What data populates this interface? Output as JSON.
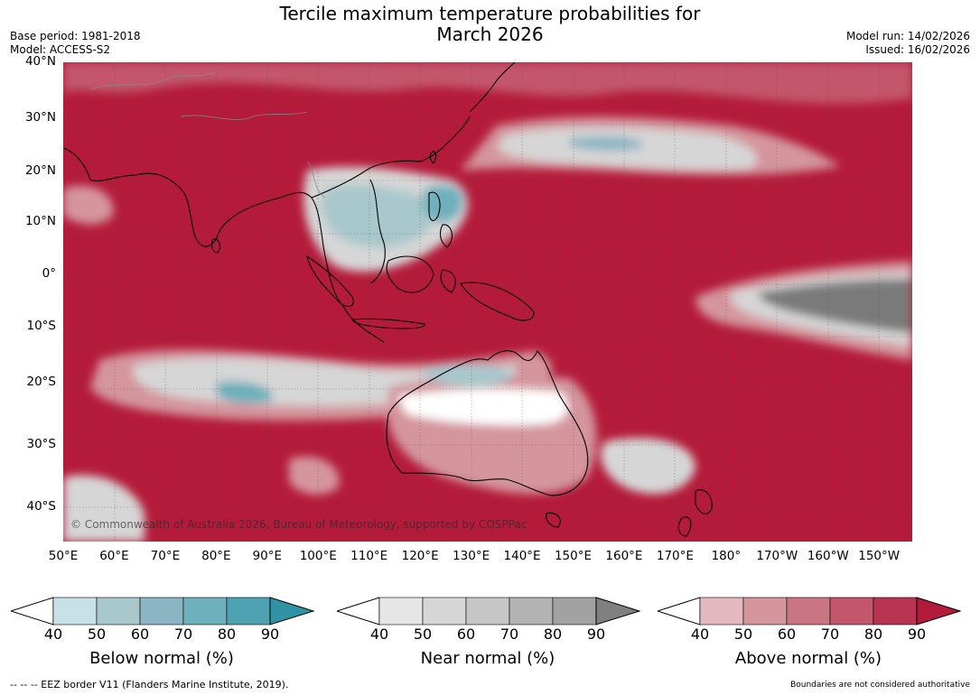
{
  "title_line1": "Tercile maximum temperature probabilities for",
  "title_line2": "March 2026",
  "base_period": "Base period: 1981-2018",
  "model": "Model: ACCESS-S2",
  "model_run": "Model run: 14/02/2026",
  "issued": "Issued: 16/02/2026",
  "copyright": "© Commonwealth of Australia 2026, Bureau of Meteorology, supported by COSPPac",
  "footer_left": "--  --  -- EEZ border V11 (Flanders Marine Institute, 2019).",
  "footer_right": "Boundaries are not considered authoritative",
  "lat_labels": [
    "40°N",
    "30°N",
    "20°N",
    "10°N",
    "0°",
    "10°S",
    "20°S",
    "30°S",
    "40°S"
  ],
  "lon_labels": [
    "50°E",
    "60°E",
    "70°E",
    "80°E",
    "90°E",
    "100°E",
    "110°E",
    "120°E",
    "130°E",
    "140°E",
    "150°E",
    "160°E",
    "170°E",
    "180°",
    "170°W",
    "160°W",
    "150°W"
  ],
  "colorbars": [
    {
      "title": "Below normal (%)",
      "ticks": [
        "40",
        "50",
        "60",
        "70",
        "80",
        "90"
      ],
      "colors": [
        "#c8e1e7",
        "#a8c8cc",
        "#8bb5c2",
        "#6eb0bb",
        "#4fa2b1",
        "#2f93a4"
      ]
    },
    {
      "title": "Near normal (%)",
      "ticks": [
        "40",
        "50",
        "60",
        "70",
        "80",
        "90"
      ],
      "colors": [
        "#e6e6e6",
        "#d6d6d6",
        "#c6c6c6",
        "#b3b3b3",
        "#a2a2a2",
        "#808080"
      ]
    },
    {
      "title": "Above normal (%)",
      "ticks": [
        "40",
        "50",
        "60",
        "70",
        "80",
        "90"
      ],
      "colors": [
        "#e3b8bf",
        "#d4959d",
        "#ca7682",
        "#c3566a",
        "#b93450",
        "#b41b3a"
      ]
    }
  ],
  "map_colors": {
    "above": "#b41b3a",
    "above2": "#c3566a",
    "above3": "#d4959d",
    "near": "#d6d6d6",
    "near_dark": "#7a7a7a",
    "below": "#a8c8cc",
    "below_dark": "#4fa2b1",
    "coast": "#000000"
  }
}
